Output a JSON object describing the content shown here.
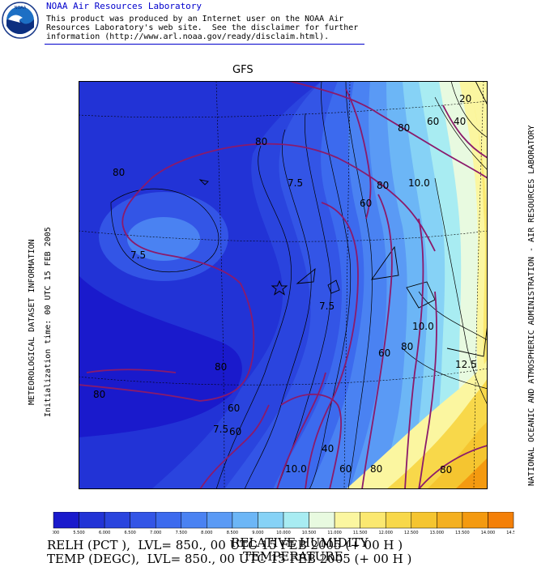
{
  "header": {
    "lab_title": "NOAA Air Resources Laboratory",
    "disclaimer_1": "This product was produced by an Internet user on the NOAA Air",
    "disclaimer_2": "Resources Laboratory's web site.  See the disclaimer for further",
    "disclaimer_3": "information (http://www.arl.noaa.gov/ready/disclaim.html).",
    "logo_text": "NOAA"
  },
  "map": {
    "model": "GFS",
    "left_label_1": "METEOROLOGICAL DATASET INFORMATION",
    "left_label_2": "Initialization time: 00 UTC 15 FEB 2005",
    "right_label": "NATIONAL OCEANIC AND ATMOSPHERIC ADMINISTRATION - AIR RESOURCES LABORATORY",
    "contour_labels": [
      "80",
      "80",
      "7.5",
      "80",
      "60",
      "80",
      "10.0",
      "60",
      "7.5",
      "20",
      "40",
      "80",
      "60",
      "10.0",
      "80",
      "60",
      "80",
      "60",
      "7.5",
      "7.5",
      "10.0",
      "40",
      "60",
      "80",
      "12.5",
      "80"
    ],
    "marker_icon": "star-icon"
  },
  "colorbar": {
    "ticks": [
      "5.000",
      "5.500",
      "6.000",
      "6.500",
      "7.000",
      "7.500",
      "8.000",
      "8.500",
      "9.000",
      "10.000",
      "10.500",
      "11.000",
      "11.500",
      "12.000",
      "12.500",
      "13.000",
      "13.500",
      "14.000",
      "14.500"
    ],
    "colors": [
      "#1a1acc",
      "#2233d6",
      "#2a44de",
      "#3355e6",
      "#3c6aee",
      "#4a82f2",
      "#5a9af5",
      "#6cb6f6",
      "#86d2f6",
      "#a8ecf2",
      "#e8fae0",
      "#fbf6a0",
      "#fbe870",
      "#f8d84a",
      "#f5c530",
      "#f4b020",
      "#f49a10",
      "#f48008"
    ]
  },
  "footer": {
    "var_1": "RELATIVE HUMIDITY",
    "var_2": "TEMPERATURE",
    "line_1": "RELH (PCT ),  LVL= 850., 00 UTC 15 FEB 2005 (+ 00 H )",
    "line_2": "TEMP (DEGC),  LVL= 850., 00 UTC 15 FEB 2005 (+ 00 H )"
  }
}
